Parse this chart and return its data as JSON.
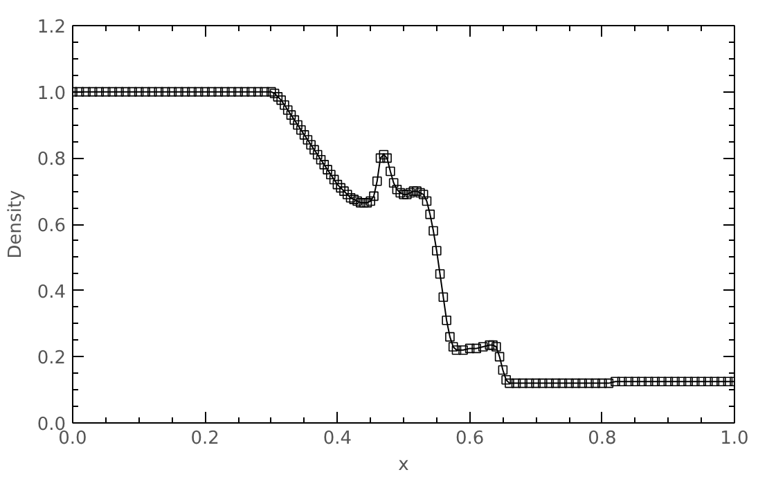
{
  "chart_data": {
    "type": "line",
    "xlabel": "x",
    "ylabel": "Density",
    "xlim": [
      0,
      1
    ],
    "ylim": [
      0,
      1.2
    ],
    "xticks": [
      {
        "value": 0,
        "label": "0.0"
      },
      0.2,
      0.4,
      0.6,
      0.8,
      {
        "value": 1,
        "label": "1.0"
      }
    ],
    "yticks": [
      {
        "value": 0,
        "label": "0.0"
      },
      0.2,
      0.4,
      0.6,
      0.8,
      {
        "value": 1,
        "label": "1.0"
      },
      1.2
    ],
    "grid": false,
    "marker": "square",
    "line_style": "solid",
    "series": [
      {
        "color": "#000000",
        "x": [
          0,
          0.01,
          0.02,
          0.03,
          0.04,
          0.05,
          0.06,
          0.07,
          0.08,
          0.09,
          0.1,
          0.11,
          0.12,
          0.13,
          0.14,
          0.15,
          0.16,
          0.17,
          0.18,
          0.19,
          0.2,
          0.21,
          0.22,
          0.23,
          0.24,
          0.25,
          0.26,
          0.27,
          0.28,
          0.29,
          0.3,
          0.305,
          0.31,
          0.315,
          0.32,
          0.325,
          0.33,
          0.335,
          0.34,
          0.345,
          0.35,
          0.355,
          0.36,
          0.365,
          0.37,
          0.375,
          0.38,
          0.385,
          0.39,
          0.395,
          0.4,
          0.405,
          0.41,
          0.415,
          0.42,
          0.425,
          0.43,
          0.435,
          0.44,
          0.445,
          0.45,
          0.455,
          0.46,
          0.465,
          0.47,
          0.475,
          0.48,
          0.485,
          0.49,
          0.495,
          0.5,
          0.505,
          0.51,
          0.515,
          0.52,
          0.525,
          0.53,
          0.535,
          0.54,
          0.545,
          0.55,
          0.555,
          0.56,
          0.565,
          0.57,
          0.575,
          0.58,
          0.59,
          0.6,
          0.61,
          0.62,
          0.63,
          0.635,
          0.64,
          0.645,
          0.65,
          0.655,
          0.66,
          0.67,
          0.68,
          0.69,
          0.7,
          0.71,
          0.72,
          0.73,
          0.74,
          0.75,
          0.76,
          0.77,
          0.78,
          0.79,
          0.8,
          0.81,
          0.82,
          0.83,
          0.84,
          0.85,
          0.86,
          0.87,
          0.88,
          0.89,
          0.9,
          0.91,
          0.92,
          0.93,
          0.94,
          0.95,
          0.96,
          0.97,
          0.98,
          0.99,
          1.0
        ],
        "values": [
          1.0,
          1.0,
          1.0,
          1.0,
          1.0,
          1.0,
          1.0,
          1.0,
          1.0,
          1.0,
          1.0,
          1.0,
          1.0,
          1.0,
          1.0,
          1.0,
          1.0,
          1.0,
          1.0,
          1.0,
          1.0,
          1.0,
          1.0,
          1.0,
          1.0,
          1.0,
          1.0,
          1.0,
          1.0,
          1.0,
          1.0,
          0.995,
          0.985,
          0.975,
          0.96,
          0.945,
          0.93,
          0.915,
          0.9,
          0.885,
          0.87,
          0.855,
          0.84,
          0.825,
          0.81,
          0.795,
          0.78,
          0.765,
          0.75,
          0.735,
          0.72,
          0.71,
          0.7,
          0.69,
          0.68,
          0.675,
          0.67,
          0.665,
          0.665,
          0.665,
          0.67,
          0.685,
          0.73,
          0.8,
          0.81,
          0.8,
          0.76,
          0.725,
          0.705,
          0.695,
          0.69,
          0.69,
          0.695,
          0.7,
          0.7,
          0.695,
          0.69,
          0.67,
          0.63,
          0.58,
          0.52,
          0.45,
          0.38,
          0.31,
          0.26,
          0.23,
          0.22,
          0.22,
          0.225,
          0.225,
          0.23,
          0.235,
          0.235,
          0.23,
          0.2,
          0.16,
          0.13,
          0.12,
          0.12,
          0.12,
          0.12,
          0.12,
          0.12,
          0.12,
          0.12,
          0.12,
          0.12,
          0.12,
          0.12,
          0.12,
          0.12,
          0.12,
          0.12,
          0.125,
          0.125,
          0.125,
          0.125,
          0.125,
          0.125,
          0.125,
          0.125,
          0.125,
          0.125,
          0.125,
          0.125,
          0.125,
          0.125,
          0.125,
          0.125,
          0.125,
          0.125,
          0.125
        ]
      }
    ]
  }
}
